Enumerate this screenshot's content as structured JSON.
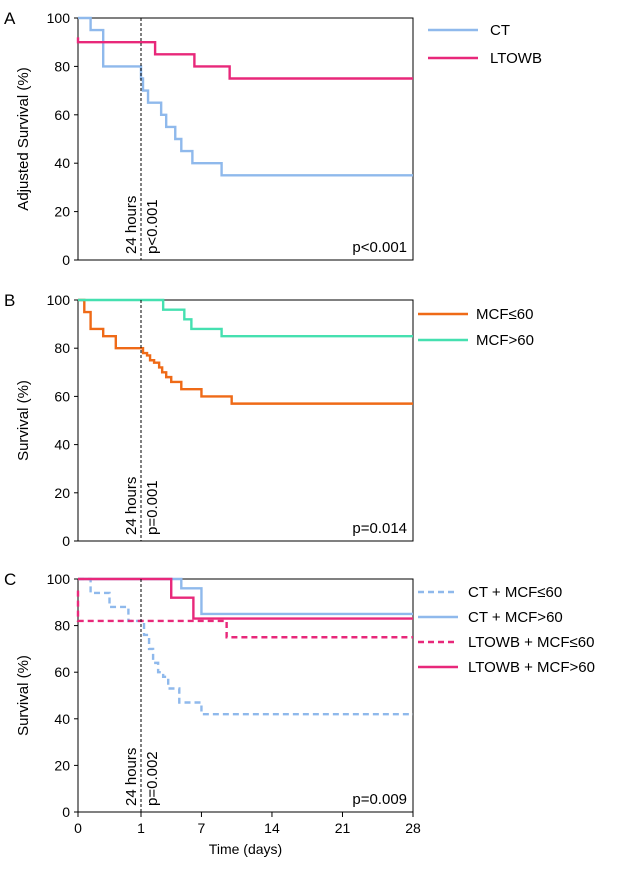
{
  "chart_data": [
    {
      "panel_letter": "A",
      "type": "line",
      "ylabel": "Adjusted  Survival (%)",
      "xlim": [
        0,
        28
      ],
      "ylim": [
        0,
        100
      ],
      "yticks": [
        0,
        20,
        40,
        60,
        80,
        100
      ],
      "grid": false,
      "legend": "right",
      "vline": {
        "x": 1,
        "label": "24 hours",
        "pvalue": "p<0.001"
      },
      "pvalue": "p<0.001",
      "series": [
        {
          "name": "CT",
          "color": "#8fb9ec",
          "dash": false,
          "x": [
            0,
            0.2,
            0.4,
            1.0,
            1.0,
            1.2,
            1.7,
            1.7,
            3.0,
            3.0,
            3.5,
            4.0,
            4.0,
            4.4,
            4.4,
            5.0,
            5.0,
            6.1,
            6.1,
            9.0,
            9.0,
            10.0,
            28
          ],
          "y": [
            100,
            95,
            80,
            80,
            75,
            70,
            70,
            65,
            65,
            60,
            55,
            55,
            55,
            55,
            50,
            50,
            45,
            45,
            40,
            40,
            35,
            35,
            35
          ]
        },
        {
          "name": "LTOWB",
          "color": "#e8287a",
          "dash": false,
          "x": [
            0,
            0,
            2.4,
            2.4,
            6.3,
            6.3,
            9.8,
            9.8,
            28
          ],
          "y": [
            92,
            90,
            90,
            85,
            85,
            80,
            80,
            75,
            75
          ]
        }
      ]
    },
    {
      "panel_letter": "B",
      "type": "line",
      "ylabel": "Survival (%)",
      "xlim": [
        0,
        28
      ],
      "ylim": [
        0,
        100
      ],
      "yticks": [
        0,
        20,
        40,
        60,
        80,
        100
      ],
      "grid": false,
      "legend": "right",
      "vline": {
        "x": 1,
        "label": "24 hours",
        "pvalue": "p=0.001"
      },
      "pvalue": "p=0.014",
      "series": [
        {
          "name": "MCF≤60",
          "color": "#ef6a17",
          "dash": false,
          "x": [
            0,
            0.1,
            0.2,
            0.4,
            0.6,
            1.0,
            1.2,
            1.6,
            1.9,
            2.3,
            2.8,
            3.1,
            3.5,
            4.0,
            4.4,
            5.0,
            5.5,
            6.0,
            7.0,
            10.0,
            28
          ],
          "y": [
            100,
            95,
            88,
            85,
            80,
            80,
            78,
            77,
            75,
            74,
            72,
            70,
            68,
            66,
            66,
            63,
            63,
            63,
            60,
            57,
            57
          ]
        },
        {
          "name": "MCF>60",
          "color": "#45e0b0",
          "dash": false,
          "x": [
            0,
            3.2,
            3.2,
            5.3,
            5.3,
            6.0,
            6.0,
            7.5,
            7.5,
            9.0,
            9.0,
            28
          ],
          "y": [
            100,
            100,
            96,
            96,
            92,
            92,
            88,
            88,
            88,
            88,
            85,
            85
          ]
        }
      ]
    },
    {
      "panel_letter": "C",
      "type": "line",
      "ylabel": "Survival (%)",
      "xlabel": "Time (days)",
      "xlim": [
        0,
        28
      ],
      "ylim": [
        0,
        100
      ],
      "xticks": [
        0,
        1,
        7,
        14,
        21,
        28
      ],
      "yticks": [
        0,
        20,
        40,
        60,
        80,
        100
      ],
      "grid": false,
      "legend": "right",
      "vline": {
        "x": 1,
        "label": "24 hours",
        "pvalue": "p=0.002"
      },
      "pvalue": "p=0.009",
      "series": [
        {
          "name": "CT + MCF≤60",
          "color": "#8fb9ec",
          "dash": true,
          "x": [
            0,
            0.2,
            0.5,
            0.8,
            1.3,
            1.8,
            2.2,
            2.7,
            3.2,
            3.7,
            3.7,
            4.8,
            4.8,
            5.5,
            5.5,
            7.0,
            7.0,
            28
          ],
          "y": [
            100,
            94,
            88,
            82,
            76,
            70,
            64,
            60,
            58,
            56,
            53,
            53,
            47,
            47,
            47,
            47,
            42,
            42
          ]
        },
        {
          "name": "CT + MCF>60",
          "color": "#8fb9ec",
          "dash": false,
          "x": [
            0,
            5.0,
            5.0,
            7.0,
            7.0,
            28
          ],
          "y": [
            100,
            100,
            96,
            96,
            85,
            85
          ]
        },
        {
          "name": "LTOWB + MCF≤60",
          "color": "#e8287a",
          "dash": true,
          "x": [
            0,
            0,
            9.5,
            9.5,
            28
          ],
          "y": [
            95,
            82,
            82,
            75,
            75
          ]
        },
        {
          "name": "LTOWB + MCF>60",
          "color": "#e8287a",
          "dash": false,
          "x": [
            0,
            4.0,
            4.0,
            6.2,
            6.2,
            28
          ],
          "y": [
            100,
            100,
            92,
            92,
            83,
            83
          ]
        }
      ]
    }
  ]
}
